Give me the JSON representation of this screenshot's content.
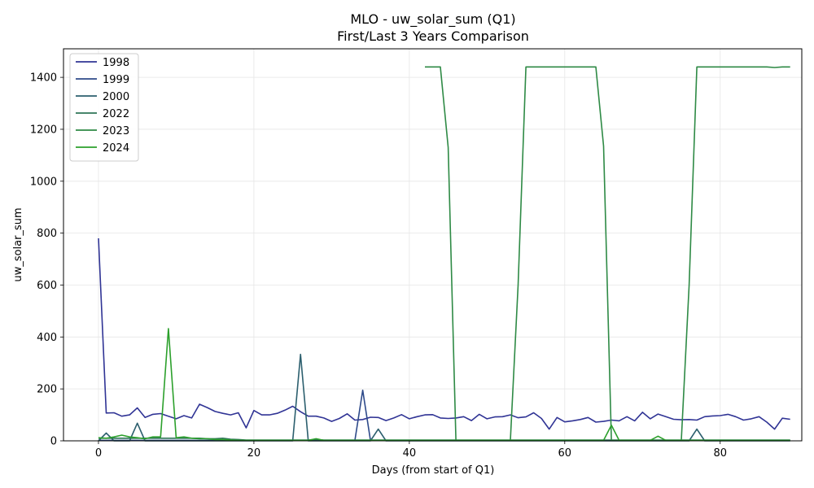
{
  "chart_data": {
    "type": "line",
    "title": "MLO - uw_solar_sum (Q1)",
    "subtitle": "First/Last 3 Years Comparison",
    "xlabel": "Days (from start of Q1)",
    "ylabel": "uw_solar_sum",
    "xlim": [
      -4.5,
      90.5
    ],
    "ylim": [
      0,
      1510
    ],
    "xticks": [
      0,
      20,
      40,
      60,
      80
    ],
    "yticks": [
      0,
      200,
      400,
      600,
      800,
      1000,
      1200,
      1400
    ],
    "grid": true,
    "legend_position": "top-left",
    "series": [
      {
        "name": "1998",
        "color": "#303495",
        "x": [
          0,
          1,
          2,
          3,
          4,
          5,
          6,
          7,
          8,
          9,
          10,
          11,
          12,
          13,
          14,
          15,
          16,
          17,
          18,
          19,
          20,
          21,
          22,
          23,
          24,
          25,
          26,
          27,
          28,
          29,
          30,
          31,
          32,
          33,
          34,
          35,
          36,
          37,
          38,
          39,
          40,
          41,
          42,
          43,
          44,
          45,
          46,
          47,
          48,
          49,
          50,
          51,
          52,
          53,
          54,
          55,
          56,
          57,
          58,
          59,
          60,
          61,
          62,
          63,
          64,
          65,
          66,
          67,
          68,
          69,
          70,
          71,
          72,
          73,
          74,
          75,
          76,
          77,
          78,
          79,
          80,
          81,
          82,
          83,
          84,
          85,
          86,
          87,
          88,
          89
        ],
        "values": [
          780,
          107,
          108,
          95,
          100,
          127,
          90,
          102,
          105,
          95,
          85,
          97,
          88,
          141,
          128,
          113,
          106,
          100,
          108,
          50,
          117,
          100,
          100,
          106,
          118,
          133,
          112,
          95,
          95,
          88,
          75,
          86,
          104,
          80,
          82,
          91,
          90,
          78,
          88,
          101,
          85,
          93,
          100,
          101,
          88,
          86,
          88,
          93,
          78,
          102,
          85,
          92,
          93,
          100,
          89,
          92,
          108,
          86,
          45,
          90,
          73,
          77,
          82,
          90,
          72,
          75,
          80,
          77,
          93,
          77,
          110,
          85,
          103,
          93,
          83,
          81,
          82,
          80,
          93,
          96,
          97,
          102,
          93,
          80,
          85,
          93,
          72,
          45,
          87,
          83
        ]
      },
      {
        "name": "1999",
        "color": "#2e4a8a",
        "x": [
          0,
          1,
          2,
          3,
          4,
          5,
          6,
          7,
          8,
          9,
          10,
          11,
          12,
          13,
          14,
          15,
          16,
          17,
          18,
          19,
          20,
          21,
          22,
          23,
          24,
          25,
          26,
          27,
          28,
          29,
          30,
          31,
          32,
          33,
          34,
          35,
          36,
          37,
          38,
          39,
          40,
          41,
          42,
          43,
          44,
          45,
          46,
          47,
          48,
          49,
          50,
          51,
          52,
          53,
          54,
          55,
          56,
          57,
          58,
          59,
          60,
          61,
          62,
          63,
          64,
          65,
          66,
          67,
          68,
          69,
          70,
          71,
          72,
          73,
          74,
          75,
          76,
          77,
          78,
          79,
          80,
          81,
          82,
          83,
          84,
          85,
          86,
          87,
          88,
          89
        ],
        "values": [
          2,
          2,
          2,
          2,
          2,
          2,
          2,
          2,
          2,
          2,
          2,
          2,
          2,
          2,
          2,
          2,
          2,
          2,
          2,
          2,
          2,
          2,
          2,
          2,
          2,
          2,
          2,
          2,
          2,
          2,
          2,
          2,
          2,
          2,
          195,
          2,
          2,
          2,
          2,
          2,
          2,
          2,
          2,
          2,
          2,
          2,
          2,
          2,
          2,
          2,
          2,
          2,
          2,
          2,
          2,
          2,
          2,
          2,
          2,
          2,
          2,
          2,
          2,
          2,
          2,
          2,
          2,
          2,
          2,
          2,
          2,
          2,
          2,
          2,
          2,
          2,
          2,
          2,
          2,
          2,
          2,
          2,
          2,
          2,
          2,
          2,
          2,
          2,
          2,
          2
        ]
      },
      {
        "name": "2000",
        "color": "#2c5f6e",
        "x": [
          0,
          1,
          2,
          3,
          4,
          5,
          6,
          7,
          8,
          9,
          10,
          11,
          12,
          13,
          14,
          15,
          16,
          17,
          18,
          19,
          20,
          21,
          22,
          23,
          24,
          25,
          26,
          27,
          28,
          29,
          30,
          31,
          32,
          33,
          34,
          35,
          36,
          37,
          38,
          39,
          40,
          41,
          42,
          43,
          44,
          45,
          46,
          47,
          48,
          49,
          50,
          51,
          52,
          53,
          54,
          55,
          56,
          57,
          58,
          59,
          60,
          61,
          62,
          63,
          64,
          65,
          66,
          67,
          68,
          69,
          70,
          71,
          72,
          73,
          74,
          75,
          76,
          77,
          78,
          79,
          80,
          81,
          82,
          83,
          84,
          85,
          86,
          87,
          88,
          89
        ],
        "values": [
          0,
          30,
          0,
          0,
          0,
          68,
          0,
          0,
          0,
          0,
          0,
          0,
          0,
          0,
          0,
          0,
          0,
          0,
          0,
          0,
          0,
          0,
          0,
          0,
          0,
          0,
          333,
          0,
          0,
          0,
          0,
          0,
          0,
          0,
          0,
          0,
          45,
          0,
          0,
          0,
          0,
          0,
          0,
          0,
          0,
          0,
          0,
          0,
          0,
          0,
          0,
          0,
          0,
          0,
          0,
          0,
          0,
          0,
          0,
          0,
          0,
          0,
          0,
          0,
          0,
          0,
          0,
          0,
          0,
          0,
          0,
          0,
          0,
          0,
          0,
          0,
          0,
          45,
          0,
          0,
          0,
          0,
          0,
          0,
          0,
          0,
          0,
          0,
          0,
          0
        ]
      },
      {
        "name": "2022",
        "color": "#2e7457",
        "x": [
          0,
          1,
          2,
          3,
          4,
          5,
          6,
          7,
          8,
          9,
          10,
          11,
          12,
          13,
          14,
          15,
          16,
          17,
          18,
          19,
          20,
          21,
          22,
          23,
          24,
          25,
          26,
          27,
          28,
          29,
          30,
          31,
          32,
          33,
          34,
          35,
          36,
          37,
          38,
          39,
          40,
          41,
          42,
          43,
          44,
          45,
          46,
          47,
          48,
          49,
          50,
          51,
          52,
          53,
          54,
          55,
          56,
          57,
          58,
          59,
          60,
          61,
          62,
          63,
          64,
          65,
          66,
          67,
          68,
          69,
          70,
          71,
          72,
          73,
          74,
          75,
          76,
          77,
          78,
          79,
          80,
          81,
          82,
          83,
          84,
          85,
          86,
          87,
          88,
          89
        ],
        "values": [
          10,
          10,
          10,
          10,
          10,
          10,
          10,
          10,
          10,
          10,
          10,
          10,
          10,
          10,
          8,
          8,
          10,
          6,
          5,
          3,
          3,
          3,
          3,
          3,
          3,
          3,
          3,
          3,
          5,
          3,
          3,
          3,
          3,
          3,
          3,
          3,
          3,
          3,
          3,
          3,
          3,
          3,
          3,
          3,
          3,
          3,
          3,
          3,
          3,
          3,
          3,
          3,
          3,
          3,
          3,
          3,
          3,
          3,
          3,
          3,
          3,
          3,
          3,
          3,
          3,
          3,
          3,
          3,
          3,
          3,
          3,
          3,
          3,
          3,
          3,
          3,
          3,
          3,
          3,
          3,
          3,
          3,
          3,
          3,
          3,
          3,
          3,
          3,
          3,
          3
        ]
      },
      {
        "name": "2023",
        "color": "#2e8a45",
        "x": [
          42,
          43,
          44,
          45,
          46,
          47,
          48,
          49,
          50,
          51,
          52,
          53,
          54,
          55,
          56,
          57,
          58,
          59,
          60,
          61,
          62,
          63,
          64,
          65,
          66,
          67,
          68,
          69,
          70,
          71,
          72,
          73,
          74,
          75,
          76,
          77,
          78,
          79,
          80,
          81,
          82,
          83,
          84,
          85,
          86,
          87,
          88,
          89
        ],
        "values": [
          1440,
          1440,
          1440,
          1130,
          2,
          2,
          2,
          2,
          2,
          2,
          2,
          2,
          600,
          1440,
          1440,
          1440,
          1440,
          1440,
          1440,
          1440,
          1440,
          1440,
          1440,
          1135,
          2,
          2,
          2,
          2,
          2,
          2,
          2,
          2,
          2,
          2,
          600,
          1440,
          1440,
          1440,
          1440,
          1440,
          1440,
          1440,
          1440,
          1440,
          1440,
          1438,
          1440,
          1440
        ]
      },
      {
        "name": "2024",
        "color": "#2ca02c",
        "x": [
          0,
          1,
          2,
          3,
          4,
          5,
          6,
          7,
          8,
          9,
          10,
          11,
          12,
          13,
          14,
          15,
          16,
          17,
          18,
          19,
          20,
          21,
          22,
          23,
          24,
          25,
          26,
          27,
          28,
          29,
          30,
          31,
          32,
          33,
          34,
          35,
          36,
          37,
          38,
          39,
          40,
          41,
          42,
          43,
          44,
          45,
          46,
          47,
          48,
          49,
          50,
          51,
          52,
          53,
          54,
          55,
          56,
          57,
          58,
          59,
          60,
          61,
          62,
          63,
          64,
          65,
          66,
          67,
          68,
          69,
          70,
          71,
          72,
          73,
          74,
          75,
          76,
          77,
          78,
          79,
          80,
          81,
          82,
          83,
          84,
          85,
          86,
          87,
          88,
          89
        ],
        "values": [
          12,
          10,
          15,
          22,
          15,
          12,
          8,
          15,
          15,
          432,
          12,
          15,
          10,
          8,
          8,
          5,
          5,
          3,
          2,
          2,
          2,
          2,
          2,
          2,
          2,
          2,
          2,
          2,
          8,
          2,
          2,
          2,
          2,
          2,
          2,
          2,
          2,
          2,
          2,
          2,
          2,
          2,
          2,
          2,
          2,
          2,
          2,
          2,
          2,
          2,
          2,
          2,
          2,
          2,
          2,
          2,
          2,
          2,
          2,
          2,
          2,
          2,
          2,
          2,
          2,
          2,
          60,
          2,
          2,
          2,
          2,
          2,
          18,
          2,
          2,
          2,
          2,
          2,
          2,
          2,
          2,
          2,
          2,
          2,
          2,
          2,
          2,
          2,
          2,
          2
        ]
      }
    ]
  }
}
